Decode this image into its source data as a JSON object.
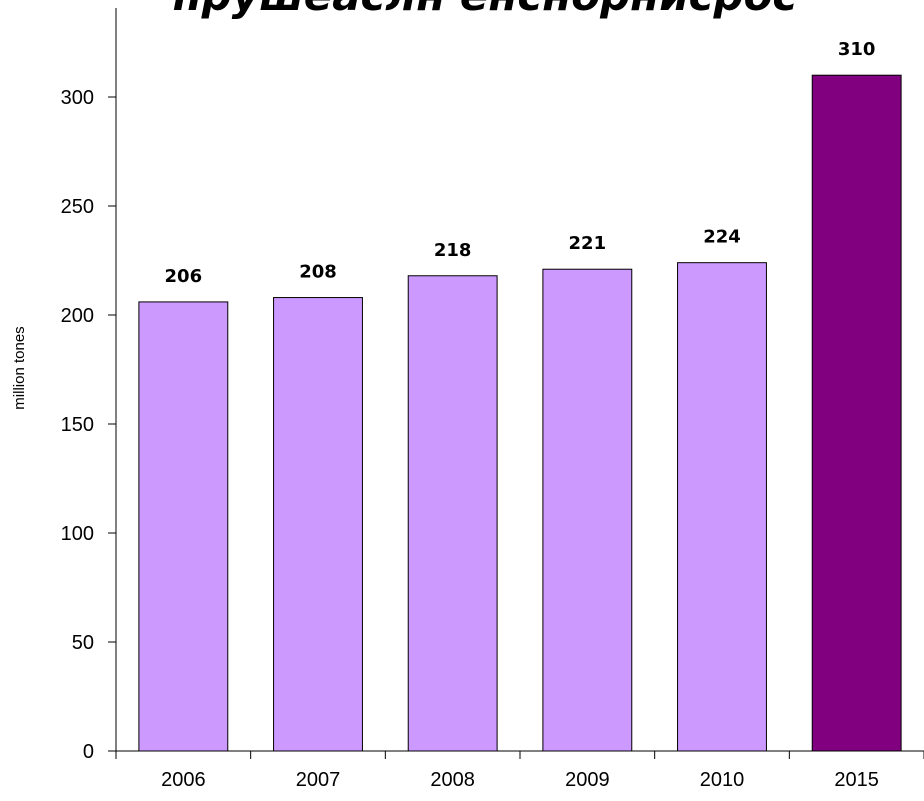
{
  "chart_data": {
    "type": "bar",
    "title": "прушеаслн енснорнисрос",
    "ylabel": "million tones",
    "xlabel": "",
    "categories": [
      "2006",
      "2007",
      "2008",
      "2009",
      "2010",
      "2015"
    ],
    "values": [
      206,
      208,
      218,
      221,
      224,
      310
    ],
    "data_labels": [
      "206",
      "208",
      "218",
      "221",
      "224",
      "310"
    ],
    "ylim": [
      0,
      340
    ],
    "yticks": [
      0,
      50,
      100,
      150,
      200,
      250,
      300
    ],
    "ytick_labels": [
      "0",
      "50",
      "100",
      "150",
      "200",
      "250",
      "300"
    ],
    "grid": false,
    "legend": "none",
    "colors": {
      "bar": "#cc99ff",
      "highlight_bar": "#800080",
      "bar_edge": "#000000",
      "axis": "#000000"
    },
    "highlight_index": 5
  }
}
